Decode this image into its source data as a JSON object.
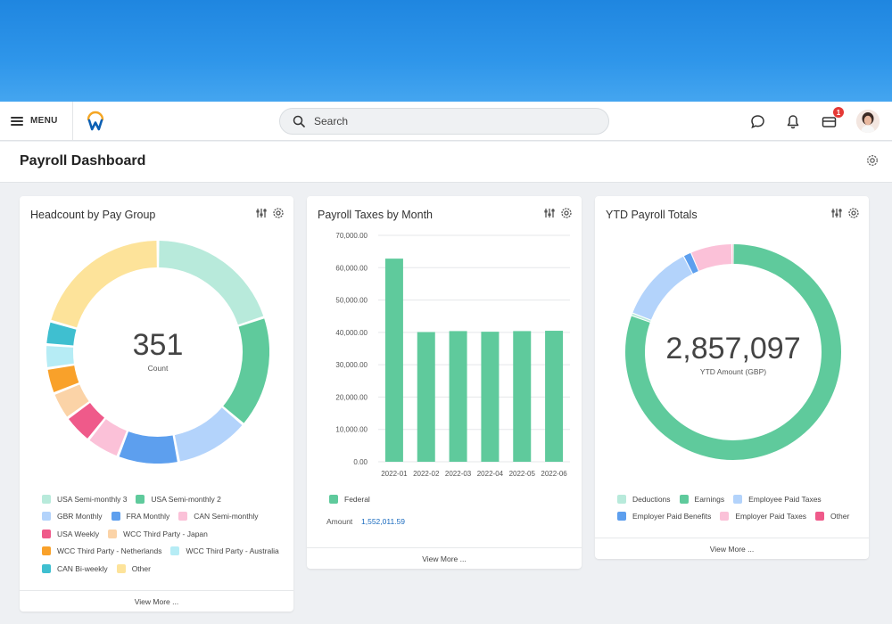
{
  "header": {
    "menu_label": "MENU",
    "search_placeholder": "Search",
    "notification_badge": "1"
  },
  "page": {
    "title": "Payroll Dashboard"
  },
  "colors": {
    "teal_light": "#b8eadb",
    "teal": "#5fca9c",
    "blue_light": "#b3d3fb",
    "blue": "#5d9fee",
    "pink_light": "#fbc1d8",
    "pink": "#ef5a8a",
    "peach": "#fbd3a7",
    "orange": "#f9a12a",
    "cyan_light": "#b6ecf5",
    "cyan": "#3fbfd0",
    "yellow": "#fde39a"
  },
  "cards": {
    "headcount": {
      "title": "Headcount by Pay Group",
      "center_value": "351",
      "center_label": "Count",
      "view_more": "View More ...",
      "legend": [
        {
          "label": "USA Semi-monthly 3",
          "color": "#b8eadb"
        },
        {
          "label": "USA Semi-monthly 2",
          "color": "#5fca9c"
        },
        {
          "label": "GBR Monthly",
          "color": "#b3d3fb"
        },
        {
          "label": "FRA Monthly",
          "color": "#5d9fee"
        },
        {
          "label": "CAN Semi-monthly",
          "color": "#fbc1d8"
        },
        {
          "label": "USA Weekly",
          "color": "#ef5a8a"
        },
        {
          "label": "WCC Third Party - Japan",
          "color": "#fbd3a7"
        },
        {
          "label": "WCC Third Party - Netherlands",
          "color": "#f9a12a"
        },
        {
          "label": "WCC Third Party - Australia",
          "color": "#b6ecf5"
        },
        {
          "label": "CAN Bi-weekly",
          "color": "#3fbfd0"
        },
        {
          "label": "Other",
          "color": "#fde39a"
        }
      ]
    },
    "taxes": {
      "title": "Payroll Taxes by Month",
      "view_more": "View More ...",
      "amount_label": "Amount",
      "amount_value": "1,552,011.59",
      "legend": [
        {
          "label": "Federal",
          "color": "#5fca9c"
        }
      ]
    },
    "ytd": {
      "title": "YTD Payroll Totals",
      "center_value": "2,857,097",
      "center_label": "YTD Amount (GBP)",
      "view_more": "View More ...",
      "legend": [
        {
          "label": "Deductions",
          "color": "#b8eadb"
        },
        {
          "label": "Earnings",
          "color": "#5fca9c"
        },
        {
          "label": "Employee Paid Taxes",
          "color": "#b3d3fb"
        },
        {
          "label": "Employer Paid Benefits",
          "color": "#5d9fee"
        },
        {
          "label": "Employer Paid Taxes",
          "color": "#fbc1d8"
        },
        {
          "label": "Other",
          "color": "#ef5a8a"
        }
      ]
    }
  },
  "chart_data": [
    {
      "type": "pie",
      "title": "Headcount by Pay Group",
      "categories": [
        "USA Semi-monthly 3",
        "USA Semi-monthly 2",
        "GBR Monthly",
        "FRA Monthly",
        "CAN Semi-monthly",
        "USA Weekly",
        "WCC Third Party - Japan",
        "WCC Third Party - Netherlands",
        "WCC Third Party - Australia",
        "CAN Bi-weekly",
        "Other"
      ],
      "values": [
        70,
        57,
        38,
        31,
        17,
        15,
        14,
        13,
        12,
        12,
        72
      ],
      "colors": [
        "#b8eadb",
        "#5fca9c",
        "#b3d3fb",
        "#5d9fee",
        "#fbc1d8",
        "#ef5a8a",
        "#fbd3a7",
        "#f9a12a",
        "#b6ecf5",
        "#3fbfd0",
        "#fde39a"
      ]
    },
    {
      "type": "bar",
      "title": "Payroll Taxes by Month",
      "categories": [
        "2022-01",
        "2022-02",
        "2022-03",
        "2022-04",
        "2022-05",
        "2022-06"
      ],
      "series": [
        {
          "name": "Federal",
          "values": [
            62800,
            40100,
            40400,
            40200,
            40400,
            40500
          ]
        }
      ],
      "ylim": [
        0,
        70000
      ],
      "yticks": [
        "0.00",
        "10,000.00",
        "20,000.00",
        "30,000.00",
        "40,000.00",
        "50,000.00",
        "60,000.00",
        "70,000.00"
      ],
      "ytick_values": [
        0,
        10000,
        20000,
        30000,
        40000,
        50000,
        60000,
        70000
      ],
      "color": "#5fca9c",
      "grid": true
    },
    {
      "type": "pie",
      "title": "YTD Payroll Totals",
      "categories": [
        "Earnings",
        "Deductions",
        "Employee Paid Taxes",
        "Employer Paid Benefits",
        "Employer Paid Taxes",
        "Other"
      ],
      "values": [
        80.5,
        0.4,
        11.5,
        1.2,
        6.2,
        0.2
      ],
      "colors": [
        "#5fca9c",
        "#b8eadb",
        "#b3d3fb",
        "#5d9fee",
        "#fbc1d8",
        "#ef5a8a"
      ]
    }
  ]
}
